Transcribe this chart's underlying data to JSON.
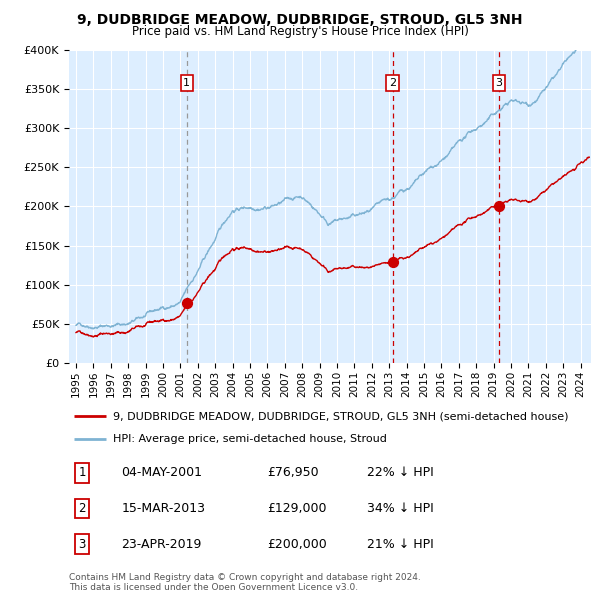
{
  "title": "9, DUDBRIDGE MEADOW, DUDBRIDGE, STROUD, GL5 3NH",
  "subtitle": "Price paid vs. HM Land Registry's House Price Index (HPI)",
  "legend_label_red": "9, DUDBRIDGE MEADOW, DUDBRIDGE, STROUD, GL5 3NH (semi-detached house)",
  "legend_label_blue": "HPI: Average price, semi-detached house, Stroud",
  "footer1": "Contains HM Land Registry data © Crown copyright and database right 2024.",
  "footer2": "This data is licensed under the Open Government Licence v3.0.",
  "sales": [
    {
      "num": 1,
      "date": "04-MAY-2001",
      "price": "£76,950",
      "pct": "22% ↓ HPI"
    },
    {
      "num": 2,
      "date": "15-MAR-2013",
      "price": "£129,000",
      "pct": "34% ↓ HPI"
    },
    {
      "num": 3,
      "date": "23-APR-2019",
      "price": "£200,000",
      "pct": "21% ↓ HPI"
    }
  ],
  "sale_years": [
    2001.37,
    2013.21,
    2019.31
  ],
  "sale_prices": [
    76950,
    129000,
    200000
  ],
  "ylim": [
    0,
    400000
  ],
  "yticks": [
    0,
    50000,
    100000,
    150000,
    200000,
    250000,
    300000,
    350000,
    400000
  ],
  "ytick_labels": [
    "£0",
    "£50K",
    "£100K",
    "£150K",
    "£200K",
    "£250K",
    "£300K",
    "£350K",
    "£400K"
  ],
  "red_color": "#cc0000",
  "blue_color": "#7fb3d3",
  "bg_color": "#ddeeff",
  "grid_color": "#ffffff",
  "vline1_color": "#999999",
  "vline23_color": "#cc0000",
  "fig_width": 6.0,
  "fig_height": 5.9,
  "dpi": 100
}
